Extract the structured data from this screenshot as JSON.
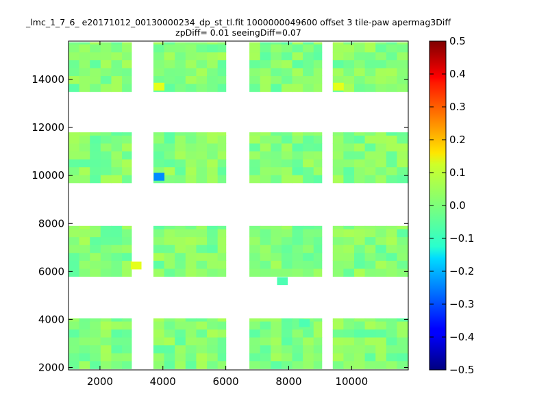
{
  "chart_data": {
    "type": "heatmap",
    "title": "_lmc_1_7_6_ e20171012_00130000234_dp_st_tl.fit 1000000049600 offset 3 tile-paw apermag3Diff",
    "subtitle": "zpDiff= 0.01 seeingDiff=0.07",
    "xlabel": "",
    "ylabel": "",
    "xlim": [
      1000,
      11800
    ],
    "ylim": [
      1900,
      15600
    ],
    "x_ticks": [
      2000,
      4000,
      6000,
      8000,
      10000
    ],
    "y_ticks": [
      2000,
      4000,
      6000,
      8000,
      10000,
      12000,
      14000
    ],
    "colorbar": {
      "colormap": "jet",
      "range": [
        -0.5,
        0.5
      ],
      "ticks": [
        "0.5",
        "0.4",
        "0.3",
        "0.2",
        "0.1",
        "0.0",
        "−0.1",
        "−0.2",
        "−0.3",
        "−0.4",
        "−0.5"
      ]
    },
    "grid": false,
    "cell_width": 340,
    "cell_height": 330,
    "background_value": 0.0,
    "rows": [
      {
        "y_range": [
          13500,
          15550
        ],
        "segments": [
          [
            1000,
            3000
          ],
          [
            3700,
            6000
          ],
          [
            6750,
            9050
          ],
          [
            9400,
            11800
          ]
        ]
      },
      {
        "y_range": [
          9700,
          11800
        ],
        "segments": [
          [
            1000,
            3000
          ],
          [
            3700,
            6000
          ],
          [
            6750,
            9050
          ],
          [
            9400,
            11800
          ]
        ]
      },
      {
        "y_range": [
          5800,
          7900
        ],
        "segments": [
          [
            1000,
            3000
          ],
          [
            3700,
            6000
          ],
          [
            6750,
            9050
          ],
          [
            9400,
            11800
          ]
        ]
      },
      {
        "y_range": [
          1950,
          4050
        ],
        "segments": [
          [
            1000,
            3000
          ],
          [
            3700,
            6000
          ],
          [
            6750,
            9050
          ],
          [
            9400,
            11800
          ]
        ]
      }
    ],
    "highlights": [
      {
        "x": 3880,
        "y": 9950,
        "value": -0.24
      },
      {
        "x": 3880,
        "y": 13700,
        "value": 0.1
      },
      {
        "x": 9580,
        "y": 13700,
        "value": 0.1
      },
      {
        "x": 3150,
        "y": 6250,
        "value": 0.1
      },
      {
        "x": 8500,
        "y": 3850,
        "value": -0.05
      },
      {
        "x": 7800,
        "y": 5600,
        "value": -0.05
      }
    ]
  }
}
